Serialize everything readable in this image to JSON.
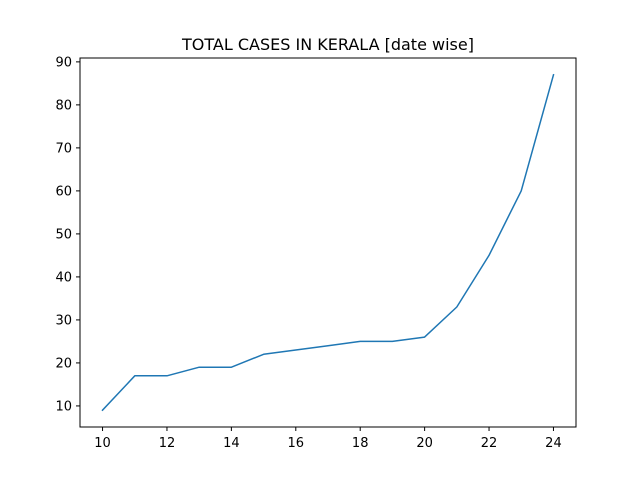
{
  "chart_data": {
    "type": "line",
    "title": "TOTAL CASES IN KERALA [date wise]",
    "xlabel": "",
    "ylabel": "",
    "x": [
      10,
      11,
      12,
      13,
      14,
      15,
      16,
      17,
      18,
      19,
      20,
      21,
      22,
      23,
      24
    ],
    "series": [
      {
        "values": [
          9,
          17,
          17,
          19,
          19,
          22,
          23,
          24,
          25,
          25,
          26,
          33,
          45,
          60,
          87
        ],
        "color": "#1f77b4"
      }
    ],
    "xlim": [
      9.3,
      24.7
    ],
    "ylim": [
      5.1,
      90.9
    ],
    "xticks": [
      10,
      12,
      14,
      16,
      18,
      20,
      22,
      24
    ],
    "yticks": [
      10,
      20,
      30,
      40,
      50,
      60,
      70,
      80,
      90
    ],
    "grid": false,
    "legend": "none"
  }
}
